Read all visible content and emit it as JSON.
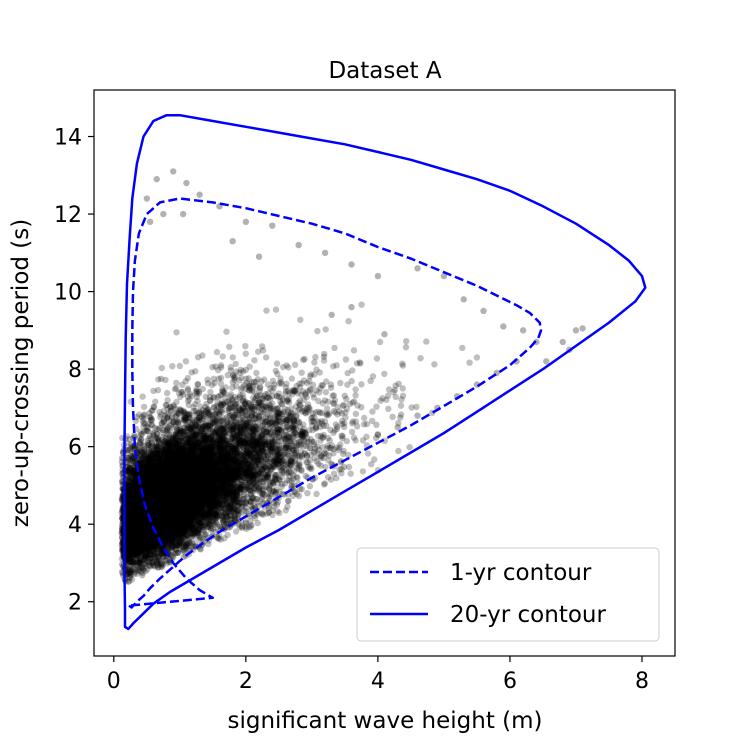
{
  "chart_data": {
    "type": "scatter",
    "title": "Dataset A",
    "xlabel": "significant wave height (m)",
    "ylabel": "zero-up-crossing period (s)",
    "xlim": [
      -0.3,
      8.5
    ],
    "ylim": [
      0.6,
      15.2
    ],
    "x_ticks": [
      0,
      2,
      4,
      6,
      8
    ],
    "y_ticks": [
      2,
      4,
      6,
      8,
      10,
      12,
      14
    ],
    "x_tick_labels": [
      "0",
      "2",
      "4",
      "6",
      "8"
    ],
    "y_tick_labels": [
      "2",
      "4",
      "6",
      "8",
      "10",
      "12",
      "14"
    ],
    "grid": false,
    "legend_position": "lower-right",
    "colors": {
      "contour": "#0000ff",
      "points": "#000000"
    },
    "series": [
      {
        "name": "1-yr contour",
        "style": "dashed",
        "x": [
          0.23,
          0.27,
          0.35,
          0.45,
          0.55,
          0.7,
          0.9,
          1.1,
          1.3,
          1.6,
          2.0,
          2.5,
          3.0,
          3.5,
          4.0,
          4.5,
          5.0,
          5.5,
          6.0,
          6.3,
          6.43,
          6.47,
          6.45,
          6.3,
          6.1,
          5.8,
          5.5,
          5.0,
          4.5,
          4.0,
          3.5,
          3.0,
          2.5,
          2.0,
          1.5,
          1.0,
          0.7,
          0.5,
          0.38,
          0.32,
          0.29,
          0.28,
          0.28,
          0.29,
          0.32,
          0.38,
          0.47,
          0.6,
          0.75,
          0.9,
          1.1,
          1.3,
          1.5
        ],
        "y": [
          1.9,
          1.85,
          2.0,
          2.15,
          2.35,
          2.6,
          2.9,
          3.2,
          3.45,
          3.8,
          4.2,
          4.7,
          5.2,
          5.65,
          6.1,
          6.55,
          7.05,
          7.55,
          8.1,
          8.55,
          8.8,
          9.0,
          9.2,
          9.45,
          9.65,
          9.9,
          10.15,
          10.5,
          10.85,
          11.15,
          11.5,
          11.75,
          11.95,
          12.15,
          12.3,
          12.4,
          12.3,
          12.0,
          11.5,
          10.8,
          10.0,
          9.0,
          8.0,
          7.0,
          6.0,
          5.2,
          4.5,
          3.9,
          3.4,
          3.0,
          2.6,
          2.3,
          2.1
        ]
      },
      {
        "name": "20-yr contour",
        "style": "solid",
        "x": [
          0.17,
          0.22,
          0.3,
          0.42,
          0.6,
          0.85,
          1.2,
          1.6,
          2.0,
          2.5,
          3.0,
          3.5,
          4.0,
          4.5,
          5.0,
          5.5,
          6.0,
          6.5,
          7.0,
          7.5,
          7.9,
          8.05,
          8.0,
          7.8,
          7.5,
          7.0,
          6.5,
          6.0,
          5.5,
          5.0,
          4.5,
          4.0,
          3.5,
          3.0,
          2.5,
          2.0,
          1.5,
          1.0,
          0.8,
          0.6,
          0.45,
          0.35,
          0.28,
          0.24,
          0.2,
          0.18,
          0.17,
          0.16,
          0.16,
          0.16,
          0.17
        ],
        "y": [
          1.35,
          1.3,
          1.45,
          1.65,
          1.95,
          2.25,
          2.6,
          3.0,
          3.4,
          3.85,
          4.35,
          4.85,
          5.35,
          5.85,
          6.35,
          6.9,
          7.45,
          8.0,
          8.6,
          9.2,
          9.75,
          10.1,
          10.4,
          10.8,
          11.2,
          11.75,
          12.2,
          12.6,
          12.9,
          13.15,
          13.4,
          13.6,
          13.8,
          13.95,
          14.1,
          14.25,
          14.4,
          14.55,
          14.55,
          14.4,
          14.0,
          13.3,
          12.4,
          11.4,
          10.2,
          8.8,
          7.3,
          5.8,
          4.3,
          2.9,
          1.8
        ]
      }
    ],
    "scatter": {
      "description_count": 12000,
      "marker_alpha": 0.25,
      "outliers": [
        [
          0.9,
          13.1
        ],
        [
          0.65,
          12.9
        ],
        [
          1.1,
          12.8
        ],
        [
          1.3,
          12.5
        ],
        [
          1.6,
          12.2
        ],
        [
          2.0,
          11.8
        ],
        [
          2.4,
          11.7
        ],
        [
          2.8,
          11.2
        ],
        [
          3.2,
          11.0
        ],
        [
          3.6,
          10.7
        ],
        [
          4.0,
          10.4
        ],
        [
          4.6,
          10.6
        ],
        [
          5.0,
          10.4
        ],
        [
          5.3,
          9.8
        ],
        [
          5.6,
          9.5
        ],
        [
          5.9,
          9.1
        ],
        [
          6.2,
          9.0
        ],
        [
          6.4,
          8.7
        ],
        [
          6.55,
          8.2
        ],
        [
          6.8,
          8.7
        ],
        [
          7.0,
          9.0
        ],
        [
          7.1,
          9.05
        ],
        [
          6.9,
          8.5
        ],
        [
          6.1,
          8.2
        ],
        [
          5.8,
          7.9
        ],
        [
          5.5,
          7.6
        ],
        [
          5.2,
          7.3
        ],
        [
          4.9,
          7.0
        ],
        [
          4.6,
          6.8
        ],
        [
          4.3,
          6.5
        ],
        [
          4.0,
          6.3
        ],
        [
          3.6,
          9.6
        ],
        [
          3.3,
          9.4
        ],
        [
          4.1,
          8.9
        ],
        [
          2.2,
          10.9
        ],
        [
          1.8,
          11.3
        ],
        [
          0.5,
          12.4
        ],
        [
          0.55,
          11.8
        ],
        [
          0.75,
          12.0
        ],
        [
          1.05,
          12.0
        ]
      ]
    }
  }
}
